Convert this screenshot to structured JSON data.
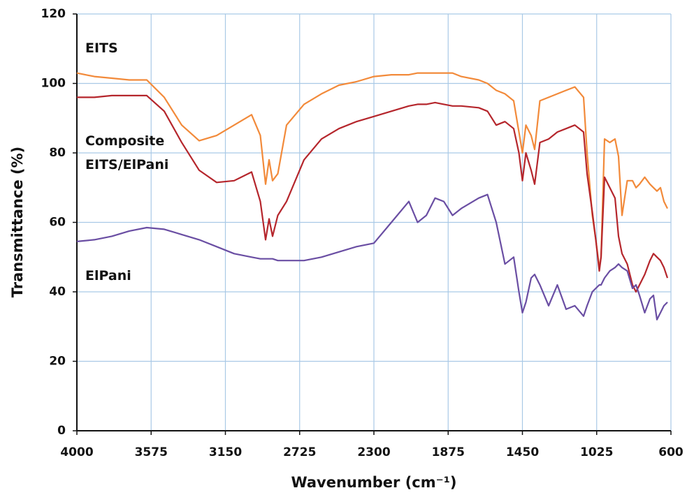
{
  "chart_data": {
    "type": "line",
    "x_label": "Wavenumber (cm⁻¹)",
    "y_label": "Transmittance (%)",
    "x": [
      4000,
      3900,
      3800,
      3700,
      3600,
      3500,
      3400,
      3300,
      3200,
      3100,
      3000,
      2950,
      2920,
      2900,
      2880,
      2850,
      2800,
      2700,
      2600,
      2500,
      2400,
      2300,
      2200,
      2100,
      2050,
      2000,
      1950,
      1900,
      1850,
      1800,
      1700,
      1650,
      1600,
      1550,
      1500,
      1470,
      1450,
      1430,
      1400,
      1380,
      1350,
      1300,
      1250,
      1200,
      1150,
      1100,
      1080,
      1050,
      1030,
      1010,
      1000,
      980,
      950,
      920,
      900,
      880,
      850,
      820,
      800,
      780,
      750,
      720,
      700,
      680,
      660,
      640,
      620
    ],
    "series": [
      {
        "name": "EITS",
        "color": "#f28a3a",
        "values": [
          103,
          102,
          101.5,
          101,
          101,
          96,
          88,
          83.5,
          85,
          88,
          91,
          85,
          71,
          78,
          72,
          74,
          88,
          94,
          97,
          99.5,
          100.5,
          102,
          102.5,
          102.5,
          103,
          103,
          103,
          103,
          103,
          102,
          101,
          100,
          98,
          97,
          95,
          86,
          80,
          88,
          85,
          81,
          95,
          96,
          97,
          98,
          99,
          96,
          80,
          62,
          55,
          47,
          50,
          84,
          83,
          84,
          79,
          62,
          72,
          72,
          70,
          71,
          73,
          71,
          70,
          69,
          70,
          66,
          64
        ]
      },
      {
        "name": "Composite EITS/ElPani",
        "color": "#b5262c",
        "values": [
          96,
          96,
          96.5,
          96.5,
          96.5,
          92,
          83,
          75,
          71.5,
          72,
          74.5,
          66,
          55,
          61,
          56,
          62,
          66,
          78,
          84,
          87,
          89,
          90.5,
          92,
          93.5,
          94,
          94,
          94.5,
          94,
          93.5,
          93.5,
          93,
          92,
          88,
          89,
          87,
          80,
          72,
          80,
          75,
          71,
          83,
          84,
          86,
          87,
          88,
          86,
          74,
          63,
          55,
          46,
          50,
          73,
          70,
          67,
          56,
          51,
          48,
          42,
          40,
          42,
          45,
          49,
          51,
          50,
          49,
          47,
          44
        ]
      },
      {
        "name": "ElPani",
        "color": "#6a4ea3",
        "values": [
          54.5,
          55,
          56,
          57.5,
          58.5,
          58,
          56.5,
          55,
          53,
          51,
          50,
          49.5,
          49.5,
          49.5,
          49.5,
          49,
          49,
          49,
          50,
          51.5,
          53,
          54,
          60,
          66,
          60,
          62,
          67,
          66,
          62,
          64,
          67,
          68,
          60,
          48,
          50,
          40,
          34,
          37,
          44,
          45,
          42,
          36,
          42,
          35,
          36,
          33,
          36,
          40,
          41,
          42,
          42,
          44,
          46,
          47,
          48,
          47,
          46,
          41,
          42,
          39,
          34,
          38,
          39,
          32,
          34,
          36,
          37
        ]
      }
    ],
    "xlim": [
      4000,
      600
    ],
    "xticks": [
      4000,
      3575,
      3150,
      2725,
      2300,
      1875,
      1450,
      1025,
      600
    ],
    "ylim": [
      0,
      120
    ],
    "yticks": [
      0,
      20,
      40,
      60,
      80,
      100,
      120
    ],
    "grid": true
  }
}
